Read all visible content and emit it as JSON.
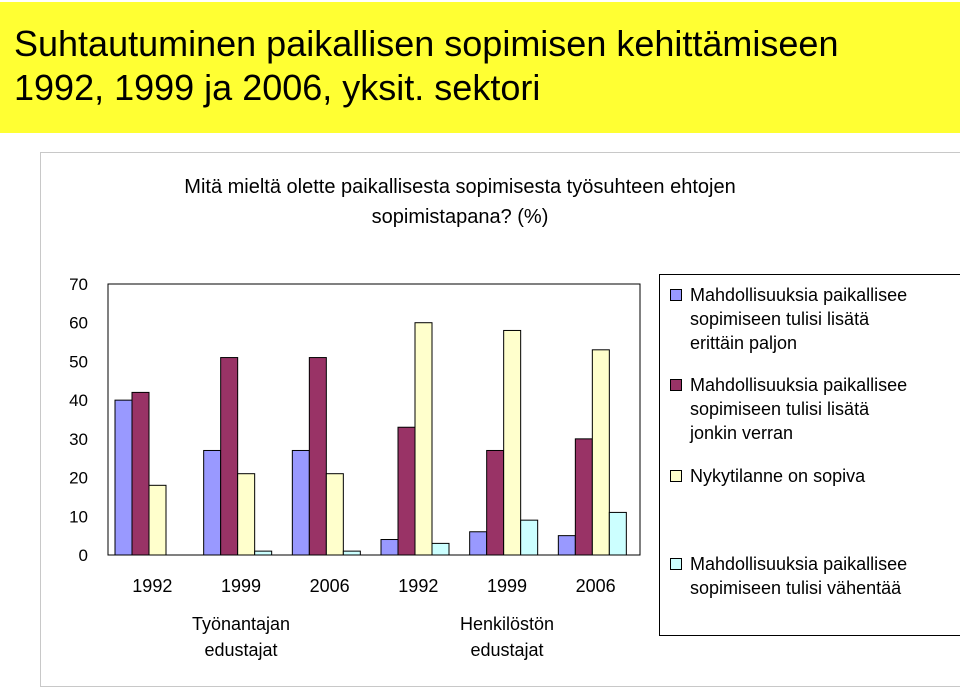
{
  "slide": {
    "title_line1": "Suhtautuminen paikallisen sopimisen kehittämiseen",
    "title_line2": "1992, 1999 ja 2006, yksit. sektori",
    "title_bg": "#ffff33"
  },
  "chart_data": {
    "type": "bar",
    "title": "Mitä mieltä olette paikallisesta sopimisesta työsuhteen ehtojen sopimistapana? (%)",
    "ylim": [
      0,
      70
    ],
    "yticks": [
      0,
      10,
      20,
      30,
      40,
      50,
      60,
      70
    ],
    "categories": [
      "1992",
      "1999",
      "2006",
      "1992",
      "1999",
      "2006"
    ],
    "groups": [
      {
        "label": "Työnantajan\nedustajat",
        "categories": [
          0,
          1,
          2
        ]
      },
      {
        "label": "Henkilöstön\nedustajat",
        "categories": [
          3,
          4,
          5
        ]
      }
    ],
    "series": [
      {
        "name": "Mahdollisuuksia paikallisee\nsopimiseen tulisi lisätä\nerittäin paljon",
        "color": "#9999ff",
        "values": [
          40,
          27,
          27,
          4,
          6,
          5
        ]
      },
      {
        "name": "Mahdollisuuksia paikallisee\nsopimiseen tulisi lisätä\njonkin verran",
        "color": "#993366",
        "values": [
          42,
          51,
          51,
          33,
          27,
          30
        ]
      },
      {
        "name": "Nykytilanne on sopiva",
        "color": "#ffffcc",
        "values": [
          18,
          21,
          21,
          60,
          58,
          53
        ]
      },
      {
        "name": "Mahdollisuuksia paikallisee\nsopimiseen tulisi vähentää",
        "color": "#ccffff",
        "values": [
          0,
          1,
          1,
          3,
          9,
          11
        ]
      }
    ],
    "grid": false,
    "legend_position": "right"
  }
}
